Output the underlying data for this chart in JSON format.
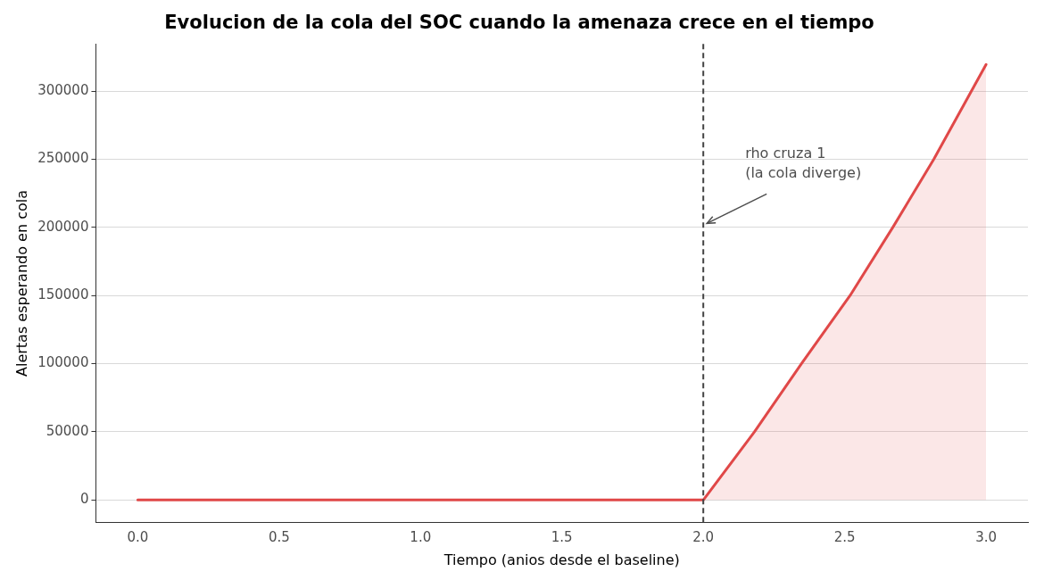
{
  "chart_data": {
    "type": "area",
    "title": "Evolucion de la cola del SOC cuando la amenaza crece en el tiempo",
    "xlabel": "Tiempo (anios desde el baseline)",
    "ylabel": "Alertas esperando en cola",
    "series": [
      {
        "color": "#e04848",
        "x": [
          0,
          0.5,
          1,
          1.5,
          2.0,
          2.181,
          2.347,
          2.519,
          2.67,
          2.815,
          3.0
        ],
        "values": [
          0,
          0,
          0,
          0,
          0,
          50000,
          100000,
          150000,
          200000,
          250000,
          319600
        ]
      }
    ],
    "xlim": [
      -0.148,
      3.148
    ],
    "xticks": [
      {
        "value": 0,
        "label": "0.0"
      },
      {
        "value": 0.5,
        "label": "0.5"
      },
      {
        "value": 1,
        "label": "1.0"
      },
      {
        "value": 1.5,
        "label": "1.5"
      },
      {
        "value": 2,
        "label": "2.0"
      },
      {
        "value": 2.5,
        "label": "2.5"
      },
      {
        "value": 3,
        "label": "3.0"
      }
    ],
    "ylim": [
      -16700,
      334700
    ],
    "yticks": [
      0,
      50000,
      100000,
      150000,
      200000,
      250000,
      300000
    ],
    "ref_lines": [
      {
        "axis": "x",
        "value": 2.0,
        "color": "#444444",
        "line_style": "dashed"
      }
    ],
    "annotations": [
      {
        "text": "rho cruza 1\n(la cola diverge)",
        "x": 2.0,
        "y": 203000
      }
    ],
    "grid": "y",
    "legend": false,
    "marker": "none",
    "line_style": "solid"
  }
}
